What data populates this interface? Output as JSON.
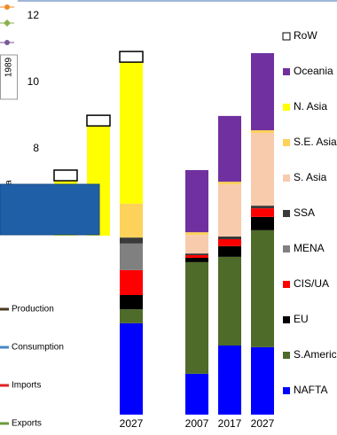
{
  "chart_data": {
    "type": "bar",
    "stacked": true,
    "categories": [
      null,
      null,
      "2027",
      null,
      "2007",
      "2017",
      "2027"
    ],
    "ylim": [
      0,
      12
    ],
    "yticks": [
      8,
      10,
      12
    ],
    "grid": false,
    "series": [
      {
        "name": "NAFTA",
        "color": "#0000ff",
        "values": [
          null,
          null,
          2.75,
          null,
          1.23,
          2.08,
          2.03
        ]
      },
      {
        "name": "S.Americ",
        "color": "#4e6b2a",
        "values": [
          null,
          null,
          0.42,
          null,
          3.36,
          2.67,
          3.52
        ]
      },
      {
        "name": "EU",
        "color": "#000000",
        "values": [
          null,
          null,
          0.43,
          null,
          0.13,
          0.32,
          0.4
        ]
      },
      {
        "name": "CIS/UA",
        "color": "#ff0000",
        "values": [
          null,
          null,
          0.75,
          null,
          0.08,
          0.21,
          0.26
        ]
      },
      {
        "name": "MENA",
        "color": "#808080",
        "values": [
          null,
          null,
          0.8,
          null,
          null,
          null,
          null
        ]
      },
      {
        "name": "SSA",
        "color": "#3a3a3a",
        "values": [
          null,
          null,
          0.18,
          null,
          0.05,
          0.08,
          0.08
        ]
      },
      {
        "name": "S. Asia",
        "color": "#f8cbad",
        "values": [
          null,
          null,
          null,
          null,
          0.56,
          1.57,
          2.19
        ]
      },
      {
        "name": "S.E. Asia",
        "color": "#fcd25a",
        "values": [
          null,
          null,
          1.02,
          null,
          0.08,
          0.08,
          0.08
        ]
      },
      {
        "name": "N. Asia",
        "color": "#ffff00",
        "values": [
          7.04,
          8.69,
          4.26,
          null,
          null,
          null,
          null
        ]
      },
      {
        "name": "Oceania",
        "color": "#7030a0",
        "values": [
          null,
          null,
          null,
          null,
          1.87,
          1.98,
          2.32
        ]
      },
      {
        "name": "RoW",
        "color": "#ffffff",
        "values": [
          0.32,
          0.32,
          0.32,
          null,
          null,
          null,
          null
        ]
      }
    ]
  },
  "side_label": "1989",
  "fragment": "a",
  "side_legend": [
    {
      "name": "Production",
      "color": "#4a3a20"
    },
    {
      "name": "Consumption",
      "color": "#4a86c8"
    },
    {
      "name": "Imports",
      "color": "#e02020"
    },
    {
      "name": "Exports",
      "color": "#6a9a3a"
    }
  ]
}
